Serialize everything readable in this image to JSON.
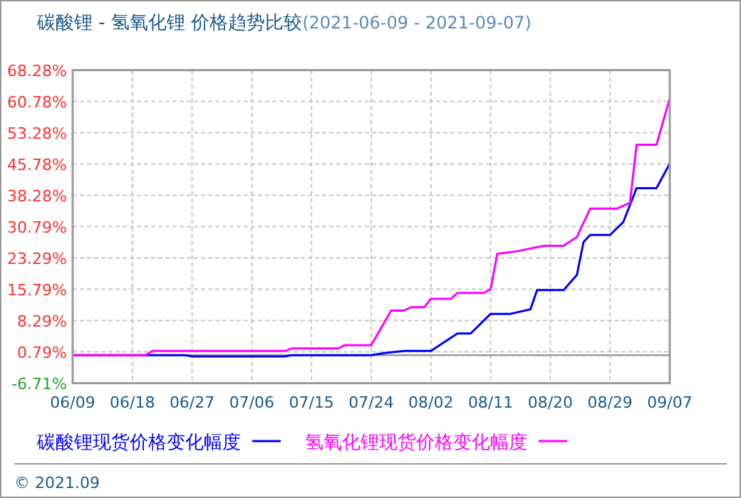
{
  "chart_data": {
    "type": "line",
    "title": "碳酸锂 - 氢氧化锂 价格趋势比较",
    "subtitle": "(2021-06-09 - 2021-09-07)",
    "annotations": [
      "© 2021.09"
    ],
    "xlim": [
      "2021-06-09",
      "2021-09-07"
    ],
    "xticks": [
      {
        "value": "2021-06-09",
        "label": "06/09"
      },
      {
        "value": "2021-06-18",
        "label": "06/18"
      },
      {
        "value": "2021-06-27",
        "label": "06/27"
      },
      {
        "value": "2021-07-06",
        "label": "07/06"
      },
      {
        "value": "2021-07-15",
        "label": "07/15"
      },
      {
        "value": "2021-07-24",
        "label": "07/24"
      },
      {
        "value": "2021-08-02",
        "label": "08/02"
      },
      {
        "value": "2021-08-11",
        "label": "08/11"
      },
      {
        "value": "2021-08-20",
        "label": "08/20"
      },
      {
        "value": "2021-08-29",
        "label": "08/29"
      },
      {
        "value": "2021-09-07",
        "label": "09/07"
      }
    ],
    "ylim": [
      -6.71,
      68.28
    ],
    "yticks": [
      {
        "value": -6.71,
        "label": "-6.71%"
      },
      {
        "value": 0.79,
        "label": "0.79%"
      },
      {
        "value": 8.29,
        "label": "8.29%"
      },
      {
        "value": 15.79,
        "label": "15.79%"
      },
      {
        "value": 23.29,
        "label": "23.29%"
      },
      {
        "value": 30.79,
        "label": "30.79%"
      },
      {
        "value": 38.28,
        "label": "38.28%"
      },
      {
        "value": 45.78,
        "label": "45.78%"
      },
      {
        "value": 53.28,
        "label": "53.28%"
      },
      {
        "value": 60.78,
        "label": "60.78%"
      },
      {
        "value": 68.28,
        "label": "68.28%"
      }
    ],
    "grid": true,
    "legend": "bottom",
    "line_style": "solid",
    "ref_lines": [
      {
        "axis": "y",
        "value": 0,
        "color": "#999999"
      }
    ],
    "series": [
      {
        "name": "碳酸锂现货价格变化幅度",
        "color": "#0000ff",
        "x": [
          "2021-06-09",
          "2021-06-26",
          "2021-06-27",
          "2021-07-11",
          "2021-07-12",
          "2021-07-24",
          "2021-07-26",
          "2021-07-29",
          "2021-08-02",
          "2021-08-06",
          "2021-08-08",
          "2021-08-11",
          "2021-08-14",
          "2021-08-17",
          "2021-08-18",
          "2021-08-22",
          "2021-08-24",
          "2021-08-25",
          "2021-08-26",
          "2021-08-29",
          "2021-08-31",
          "2021-09-02",
          "2021-09-05",
          "2021-09-07"
        ],
        "values": [
          0,
          0,
          -0.3,
          -0.3,
          0,
          0,
          0.5,
          1.0,
          1.0,
          5.2,
          5.2,
          9.9,
          9.9,
          11.0,
          15.6,
          15.6,
          19.2,
          27.1,
          28.8,
          28.8,
          31.9,
          40.0,
          40.0,
          45.9
        ]
      },
      {
        "name": "氢氧化锂现货价格变化幅度",
        "color": "#ff00ff",
        "x": [
          "2021-06-09",
          "2021-06-20",
          "2021-06-21",
          "2021-07-11",
          "2021-07-12",
          "2021-07-19",
          "2021-07-20",
          "2021-07-24",
          "2021-07-27",
          "2021-07-29",
          "2021-07-30",
          "2021-08-01",
          "2021-08-02",
          "2021-08-05",
          "2021-08-06",
          "2021-08-10",
          "2021-08-11",
          "2021-08-12",
          "2021-08-15",
          "2021-08-19",
          "2021-08-22",
          "2021-08-24",
          "2021-08-26",
          "2021-08-30",
          "2021-09-01",
          "2021-09-02",
          "2021-09-05",
          "2021-09-07"
        ],
        "values": [
          0,
          0,
          1.0,
          1.0,
          1.6,
          1.6,
          2.4,
          2.4,
          10.7,
          10.7,
          11.5,
          11.5,
          13.5,
          13.5,
          14.9,
          14.9,
          15.8,
          24.3,
          24.9,
          26.2,
          26.2,
          28.3,
          35.1,
          35.1,
          36.5,
          50.4,
          50.4,
          61.5
        ]
      }
    ]
  }
}
